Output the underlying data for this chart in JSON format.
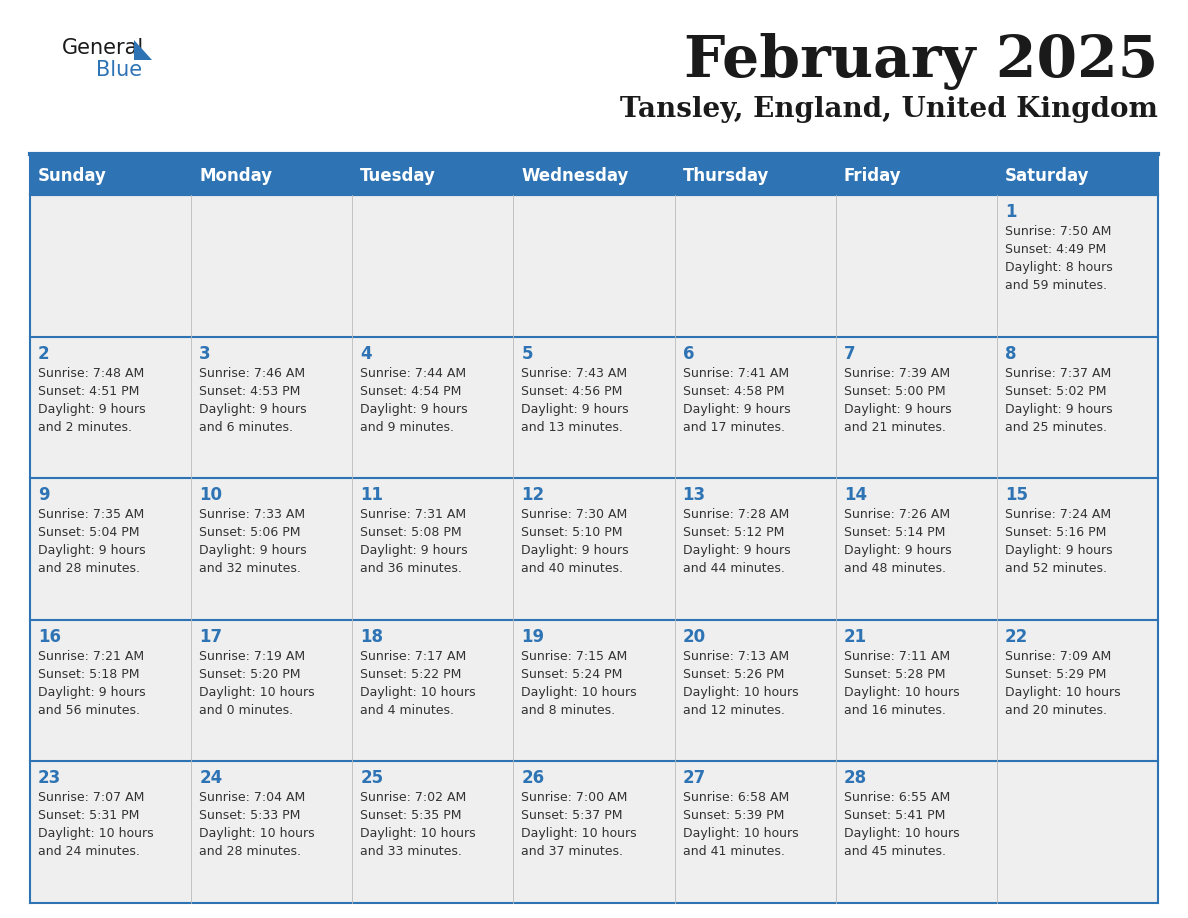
{
  "title": "February 2025",
  "subtitle": "Tansley, England, United Kingdom",
  "header_color": "#2E74B5",
  "header_text_color": "#FFFFFF",
  "cell_bg_color": "#EFEFEF",
  "text_color": "#333333",
  "line_color": "#2E74B5",
  "days_of_week": [
    "Sunday",
    "Monday",
    "Tuesday",
    "Wednesday",
    "Thursday",
    "Friday",
    "Saturday"
  ],
  "weeks": [
    [
      {
        "day": null,
        "sunrise": null,
        "sunset": null,
        "daylight": null
      },
      {
        "day": null,
        "sunrise": null,
        "sunset": null,
        "daylight": null
      },
      {
        "day": null,
        "sunrise": null,
        "sunset": null,
        "daylight": null
      },
      {
        "day": null,
        "sunrise": null,
        "sunset": null,
        "daylight": null
      },
      {
        "day": null,
        "sunrise": null,
        "sunset": null,
        "daylight": null
      },
      {
        "day": null,
        "sunrise": null,
        "sunset": null,
        "daylight": null
      },
      {
        "day": 1,
        "sunrise": "7:50 AM",
        "sunset": "4:49 PM",
        "daylight": "8 hours\nand 59 minutes."
      }
    ],
    [
      {
        "day": 2,
        "sunrise": "7:48 AM",
        "sunset": "4:51 PM",
        "daylight": "9 hours\nand 2 minutes."
      },
      {
        "day": 3,
        "sunrise": "7:46 AM",
        "sunset": "4:53 PM",
        "daylight": "9 hours\nand 6 minutes."
      },
      {
        "day": 4,
        "sunrise": "7:44 AM",
        "sunset": "4:54 PM",
        "daylight": "9 hours\nand 9 minutes."
      },
      {
        "day": 5,
        "sunrise": "7:43 AM",
        "sunset": "4:56 PM",
        "daylight": "9 hours\nand 13 minutes."
      },
      {
        "day": 6,
        "sunrise": "7:41 AM",
        "sunset": "4:58 PM",
        "daylight": "9 hours\nand 17 minutes."
      },
      {
        "day": 7,
        "sunrise": "7:39 AM",
        "sunset": "5:00 PM",
        "daylight": "9 hours\nand 21 minutes."
      },
      {
        "day": 8,
        "sunrise": "7:37 AM",
        "sunset": "5:02 PM",
        "daylight": "9 hours\nand 25 minutes."
      }
    ],
    [
      {
        "day": 9,
        "sunrise": "7:35 AM",
        "sunset": "5:04 PM",
        "daylight": "9 hours\nand 28 minutes."
      },
      {
        "day": 10,
        "sunrise": "7:33 AM",
        "sunset": "5:06 PM",
        "daylight": "9 hours\nand 32 minutes."
      },
      {
        "day": 11,
        "sunrise": "7:31 AM",
        "sunset": "5:08 PM",
        "daylight": "9 hours\nand 36 minutes."
      },
      {
        "day": 12,
        "sunrise": "7:30 AM",
        "sunset": "5:10 PM",
        "daylight": "9 hours\nand 40 minutes."
      },
      {
        "day": 13,
        "sunrise": "7:28 AM",
        "sunset": "5:12 PM",
        "daylight": "9 hours\nand 44 minutes."
      },
      {
        "day": 14,
        "sunrise": "7:26 AM",
        "sunset": "5:14 PM",
        "daylight": "9 hours\nand 48 minutes."
      },
      {
        "day": 15,
        "sunrise": "7:24 AM",
        "sunset": "5:16 PM",
        "daylight": "9 hours\nand 52 minutes."
      }
    ],
    [
      {
        "day": 16,
        "sunrise": "7:21 AM",
        "sunset": "5:18 PM",
        "daylight": "9 hours\nand 56 minutes."
      },
      {
        "day": 17,
        "sunrise": "7:19 AM",
        "sunset": "5:20 PM",
        "daylight": "10 hours\nand 0 minutes."
      },
      {
        "day": 18,
        "sunrise": "7:17 AM",
        "sunset": "5:22 PM",
        "daylight": "10 hours\nand 4 minutes."
      },
      {
        "day": 19,
        "sunrise": "7:15 AM",
        "sunset": "5:24 PM",
        "daylight": "10 hours\nand 8 minutes."
      },
      {
        "day": 20,
        "sunrise": "7:13 AM",
        "sunset": "5:26 PM",
        "daylight": "10 hours\nand 12 minutes."
      },
      {
        "day": 21,
        "sunrise": "7:11 AM",
        "sunset": "5:28 PM",
        "daylight": "10 hours\nand 16 minutes."
      },
      {
        "day": 22,
        "sunrise": "7:09 AM",
        "sunset": "5:29 PM",
        "daylight": "10 hours\nand 20 minutes."
      }
    ],
    [
      {
        "day": 23,
        "sunrise": "7:07 AM",
        "sunset": "5:31 PM",
        "daylight": "10 hours\nand 24 minutes."
      },
      {
        "day": 24,
        "sunrise": "7:04 AM",
        "sunset": "5:33 PM",
        "daylight": "10 hours\nand 28 minutes."
      },
      {
        "day": 25,
        "sunrise": "7:02 AM",
        "sunset": "5:35 PM",
        "daylight": "10 hours\nand 33 minutes."
      },
      {
        "day": 26,
        "sunrise": "7:00 AM",
        "sunset": "5:37 PM",
        "daylight": "10 hours\nand 37 minutes."
      },
      {
        "day": 27,
        "sunrise": "6:58 AM",
        "sunset": "5:39 PM",
        "daylight": "10 hours\nand 41 minutes."
      },
      {
        "day": 28,
        "sunrise": "6:55 AM",
        "sunset": "5:41 PM",
        "daylight": "10 hours\nand 45 minutes."
      },
      {
        "day": null,
        "sunrise": null,
        "sunset": null,
        "daylight": null
      }
    ]
  ]
}
